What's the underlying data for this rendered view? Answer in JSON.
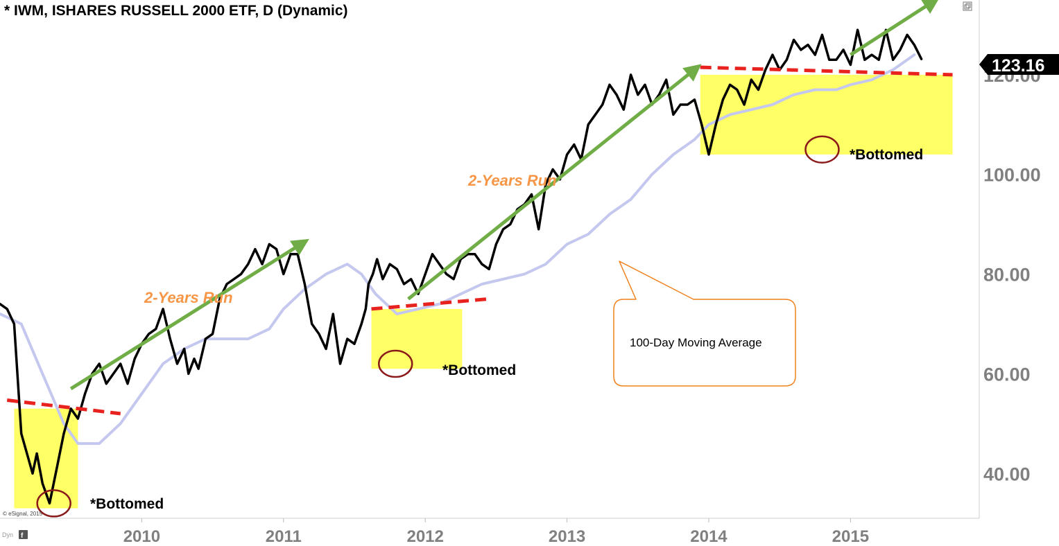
{
  "header": {
    "title": "* IWM, ISHARES RUSSELL 2000 ETF, D (Dynamic)"
  },
  "footer": {
    "copyright": "© eSignal, 2015",
    "mode": "Dyn"
  },
  "icons": {
    "window_icon": "restore-window-icon",
    "footer_icon": "f-badge-icon"
  },
  "colors": {
    "price_line": "#000000",
    "moving_average": "#c5c8ee",
    "zone_fill": "#ffff66",
    "resistance_dash": "#e8231f",
    "run_arrow": "#70ad47",
    "run_label": "#f79646",
    "circle": "#8b1a1a",
    "callout_border": "#f0821e"
  },
  "annotations": {
    "run_label_1": "2-Years Run",
    "run_label_2": "2-Years Run",
    "bottom_label_1": "*Bottomed",
    "bottom_label_2": "*Bottomed",
    "bottom_label_3": "*Bottomed",
    "callout": "100-Day Moving Average"
  },
  "chart_data": {
    "type": "line",
    "title": "* IWM, ISHARES RUSSELL 2000 ETF, D (Dynamic)",
    "x_ticks": [
      "2010",
      "2011",
      "2012",
      "2013",
      "2014",
      "2015"
    ],
    "y_ticks": [
      "40.00",
      "60.00",
      "80.00",
      "100.00",
      "120.00"
    ],
    "ylim": [
      31,
      135
    ],
    "xlim": [
      2009.0,
      2015.9
    ],
    "last_price": "123.16",
    "grid": false,
    "series": [
      {
        "role": "price",
        "x": [
          2009.0,
          2009.05,
          2009.1,
          2009.15,
          2009.2,
          2009.23,
          2009.26,
          2009.3,
          2009.35,
          2009.4,
          2009.45,
          2009.5,
          2009.55,
          2009.6,
          2009.65,
          2009.7,
          2009.75,
          2009.8,
          2009.85,
          2009.9,
          2009.95,
          2010.0,
          2010.05,
          2010.1,
          2010.15,
          2010.2,
          2010.25,
          2010.3,
          2010.33,
          2010.37,
          2010.4,
          2010.45,
          2010.5,
          2010.55,
          2010.6,
          2010.65,
          2010.7,
          2010.75,
          2010.8,
          2010.85,
          2010.9,
          2010.95,
          2011.0,
          2011.05,
          2011.1,
          2011.15,
          2011.2,
          2011.25,
          2011.3,
          2011.35,
          2011.4,
          2011.45,
          2011.5,
          2011.55,
          2011.58,
          2011.6,
          2011.63,
          2011.66,
          2011.7,
          2011.75,
          2011.8,
          2011.85,
          2011.9,
          2011.95,
          2012.0,
          2012.05,
          2012.1,
          2012.15,
          2012.2,
          2012.25,
          2012.3,
          2012.35,
          2012.4,
          2012.45,
          2012.5,
          2012.55,
          2012.6,
          2012.65,
          2012.7,
          2012.75,
          2012.8,
          2012.85,
          2012.9,
          2012.95,
          2013.0,
          2013.05,
          2013.1,
          2013.15,
          2013.2,
          2013.25,
          2013.3,
          2013.35,
          2013.4,
          2013.45,
          2013.5,
          2013.55,
          2013.6,
          2013.65,
          2013.7,
          2013.75,
          2013.8,
          2013.85,
          2013.9,
          2013.95,
          2014.0,
          2014.05,
          2014.1,
          2014.15,
          2014.2,
          2014.25,
          2014.3,
          2014.35,
          2014.4,
          2014.45,
          2014.5,
          2014.55,
          2014.6,
          2014.65,
          2014.7,
          2014.75,
          2014.8,
          2014.85,
          2014.9,
          2014.95,
          2015.0,
          2015.05,
          2015.1,
          2015.15,
          2015.2,
          2015.25,
          2015.3,
          2015.35,
          2015.4,
          2015.45,
          2015.5
        ],
        "y": [
          74,
          73,
          70,
          48,
          43,
          40,
          44,
          38,
          34,
          41,
          48,
          53,
          51,
          56,
          60,
          62,
          58,
          60,
          62,
          58,
          63,
          66,
          68,
          69,
          73,
          67,
          62,
          65,
          60,
          63,
          61,
          67,
          68,
          75,
          78,
          79,
          80,
          82,
          85,
          82,
          86,
          85,
          80,
          84,
          84,
          78,
          70,
          68,
          65,
          72,
          62,
          67,
          66,
          70,
          73,
          78,
          80,
          83,
          79,
          82,
          81,
          78,
          79,
          76,
          80,
          84,
          82,
          80,
          79,
          83,
          84,
          84,
          82,
          81,
          86,
          89,
          90,
          93,
          94,
          96,
          89,
          98,
          101,
          99,
          104,
          106,
          103,
          110,
          112,
          114,
          118,
          116,
          113,
          120,
          116,
          118,
          114,
          116,
          119,
          112,
          114,
          114,
          115,
          110,
          104,
          110,
          115,
          118,
          117,
          114,
          119,
          117,
          121,
          124,
          121,
          123,
          127,
          125,
          126,
          124,
          128,
          123,
          123,
          125,
          122,
          129,
          123,
          124,
          123,
          129,
          123,
          125,
          128,
          126,
          123.16
        ]
      },
      {
        "role": "moving_average",
        "x": [
          2009.0,
          2009.15,
          2009.3,
          2009.45,
          2009.55,
          2009.7,
          2009.85,
          2010.0,
          2010.15,
          2010.3,
          2010.45,
          2010.6,
          2010.75,
          2010.9,
          2011.0,
          2011.15,
          2011.3,
          2011.45,
          2011.55,
          2011.65,
          2011.8,
          2011.95,
          2012.1,
          2012.25,
          2012.4,
          2012.55,
          2012.7,
          2012.85,
          2013.0,
          2013.15,
          2013.3,
          2013.45,
          2013.6,
          2013.75,
          2013.9,
          2014.0,
          2014.15,
          2014.3,
          2014.45,
          2014.6,
          2014.75,
          2014.9,
          2015.0,
          2015.15,
          2015.3,
          2015.45
        ],
        "y": [
          72,
          70,
          60,
          50,
          46,
          46,
          50,
          56,
          62,
          65,
          67,
          67,
          67,
          69,
          73,
          77,
          80,
          82,
          80,
          76,
          72,
          73,
          74,
          76,
          78,
          79,
          80,
          82,
          86,
          88,
          92,
          95,
          100,
          104,
          107,
          110,
          112,
          113,
          114,
          116,
          117,
          117,
          118,
          119,
          121,
          124
        ]
      }
    ],
    "zones": [
      {
        "x0": 2009.1,
        "x1": 2009.55,
        "y0": 33,
        "y1": 53
      },
      {
        "x0": 2011.62,
        "x1": 2012.26,
        "y0": 61,
        "y1": 73
      },
      {
        "x0": 2013.94,
        "x1": 2015.72,
        "y0": 104,
        "y1": 120
      }
    ],
    "resistance_lines": [
      {
        "x0": 2009.05,
        "x1": 2009.85,
        "y0": 54.7,
        "y1": 52.0
      },
      {
        "x0": 2011.62,
        "x1": 2012.44,
        "y0": 73.0,
        "y1": 75.0
      },
      {
        "x0": 2013.94,
        "x1": 2015.72,
        "y0": 121.5,
        "y1": 120.0
      }
    ],
    "run_arrows": [
      {
        "x0": 2009.5,
        "y0": 57,
        "x1": 2011.15,
        "y1": 86.5
      },
      {
        "x0": 2011.88,
        "y0": 75,
        "x1": 2013.92,
        "y1": 121.5
      },
      {
        "x0": 2015.0,
        "y0": 124,
        "x1": 2015.6,
        "y1": 135
      }
    ],
    "bottoms": [
      {
        "x": 2009.38,
        "y": 34
      },
      {
        "x": 2011.79,
        "y": 62
      },
      {
        "x": 2014.8,
        "y": 105
      }
    ]
  }
}
